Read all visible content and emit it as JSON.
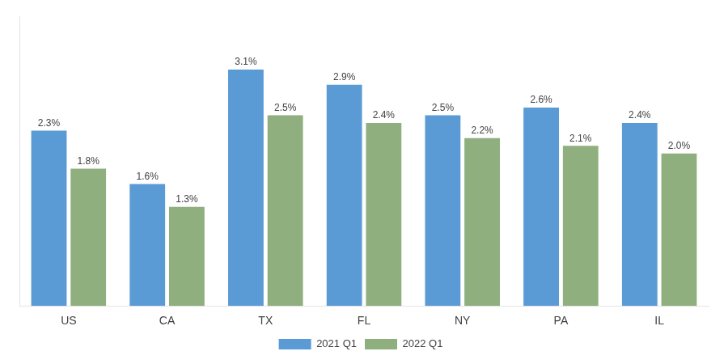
{
  "chart_data": {
    "type": "bar",
    "categories": [
      "US",
      "CA",
      "TX",
      "FL",
      "NY",
      "PA",
      "IL"
    ],
    "series": [
      {
        "name": "2021 Q1",
        "color": "#5B9BD5",
        "values": [
          2.3,
          1.6,
          3.1,
          2.9,
          2.5,
          2.6,
          2.4
        ],
        "value_labels": [
          "2.3%",
          "1.6%",
          "3.1%",
          "2.9%",
          "2.5%",
          "2.6%",
          "2.4%"
        ]
      },
      {
        "name": "2022 Q1",
        "color": "#8FAF7E",
        "values": [
          1.8,
          1.3,
          2.5,
          2.4,
          2.2,
          2.1,
          2.0
        ],
        "value_labels": [
          "1.8%",
          "1.3%",
          "2.5%",
          "2.4%",
          "2.2%",
          "2.1%",
          "2.0%"
        ]
      }
    ],
    "ylim": [
      0,
      3.8
    ],
    "grid": false,
    "legend": "bottom",
    "data_labels": true,
    "tick_labels": "x"
  }
}
